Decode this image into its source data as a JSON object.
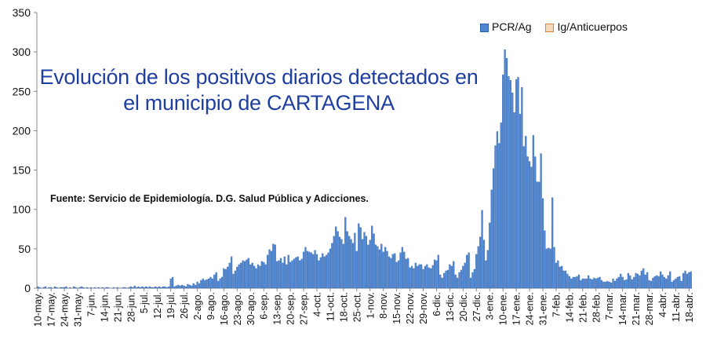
{
  "chart_data": {
    "type": "bar",
    "title": "Evolución de los positivos diarios detectados en el municipio de CARTAGENA",
    "title_lines": [
      "Evolución de los positivos diarios detectados en",
      "el municipio de CARTAGENA"
    ],
    "source": "Fuente: Servicio de Epidemiología. D.G. Salud Pública y Adicciones.",
    "ylim": [
      0,
      350
    ],
    "y_ticks": [
      "0",
      "50",
      "100",
      "150",
      "200",
      "250",
      "300",
      "350"
    ],
    "x_tick_labels": [
      "10-may.",
      "17-may.",
      "24-may.",
      "31-may.",
      "7-jun.",
      "14-jun.",
      "21-jun.",
      "28-jun.",
      "5-jul.",
      "12-jul.",
      "19-jul.",
      "26-jul.",
      "2-ago.",
      "9-ago.",
      "16-ago.",
      "23-ago.",
      "30-ago.",
      "6-sep.",
      "13-sep.",
      "20-sep.",
      "27-sep.",
      "4-oct.",
      "11-oct.",
      "18-oct.",
      "25-oct.",
      "1-nov.",
      "8-nov.",
      "15-nov.",
      "22-nov.",
      "29-nov.",
      "6-dic.",
      "13-dic.",
      "20-dic.",
      "27-dic.",
      "3-ene.",
      "10-ene.",
      "17-ene.",
      "24-ene.",
      "31-ene.",
      "7-feb.",
      "14-feb.",
      "21-feb.",
      "28-feb.",
      "7-mar.",
      "14-mar.",
      "21-mar.",
      "28-mar.",
      "4-abr.",
      "11-abr.",
      "18-abr."
    ],
    "x_start": "10-may.",
    "legend_position": "top-right",
    "grid": false,
    "colors": {
      "pcr": "#4f86cf",
      "pcr_edge": "#2b5fae",
      "ig": "#f7d8b8",
      "ig_edge": "#d9813c",
      "axis": "#888888"
    },
    "series": [
      {
        "name": "PCR/Ag",
        "weekly_daily_values": [
          [
            2,
            1,
            0,
            1,
            2,
            0,
            1
          ],
          [
            1,
            0,
            2,
            1,
            0,
            1,
            1
          ],
          [
            1,
            2,
            0,
            1,
            0,
            2,
            1
          ],
          [
            0,
            1,
            2,
            1,
            0,
            1,
            0
          ],
          [
            1,
            0,
            1,
            0,
            1,
            0,
            1
          ],
          [
            0,
            1,
            1,
            0,
            0,
            1,
            0
          ],
          [
            1,
            0,
            0,
            1,
            1,
            0,
            1
          ],
          [
            2,
            1,
            3,
            1,
            2,
            1,
            2
          ],
          [
            1,
            2,
            1,
            2,
            1,
            1,
            2
          ],
          [
            1,
            2,
            1,
            2,
            2,
            1,
            2
          ],
          [
            12,
            14,
            2,
            3,
            4,
            3,
            4
          ],
          [
            3,
            2,
            5,
            4,
            3,
            6,
            4
          ],
          [
            8,
            6,
            10,
            12,
            10,
            11,
            12
          ],
          [
            14,
            12,
            17,
            20,
            9,
            12,
            14
          ],
          [
            25,
            24,
            27,
            32,
            40,
            18,
            22
          ],
          [
            27,
            30,
            32,
            35,
            34,
            36,
            38
          ],
          [
            30,
            32,
            28,
            25,
            30,
            28,
            34
          ],
          [
            33,
            30,
            42,
            49,
            47,
            56,
            55
          ],
          [
            34,
            35,
            38,
            32,
            40,
            30,
            42
          ],
          [
            33,
            35,
            37,
            39,
            40,
            35,
            37
          ],
          [
            46,
            52,
            47,
            46,
            45,
            43,
            48
          ],
          [
            43,
            35,
            39,
            44,
            40,
            42,
            45
          ],
          [
            50,
            57,
            66,
            78,
            72,
            65,
            62
          ],
          [
            56,
            90,
            72,
            66,
            62,
            57,
            70
          ],
          [
            47,
            82,
            77,
            62,
            71,
            66,
            55
          ],
          [
            61,
            79,
            69,
            55,
            53,
            49,
            56
          ],
          [
            46,
            52,
            47,
            40,
            38,
            43,
            44
          ],
          [
            33,
            35,
            45,
            52,
            46,
            37,
            38
          ],
          [
            26,
            28,
            25,
            32,
            28,
            30,
            30
          ],
          [
            24,
            28,
            30,
            26,
            25,
            29,
            36
          ],
          [
            35,
            42,
            17,
            13,
            19,
            22,
            23
          ],
          [
            30,
            28,
            34,
            17,
            13,
            20,
            23
          ],
          [
            28,
            32,
            42,
            45,
            13,
            20,
            24
          ],
          [
            43,
            53,
            65,
            99,
            61,
            35,
            48
          ],
          [
            83,
            125,
            152,
            181,
            199,
            184,
            210
          ],
          [
            271,
            303,
            292,
            269,
            264,
            248,
            223
          ],
          [
            265,
            268,
            221,
            255,
            180,
            193,
            167
          ],
          [
            161,
            154,
            194,
            167,
            135,
            135,
            171
          ],
          [
            114,
            73,
            50,
            51,
            50,
            115,
            52
          ],
          [
            32,
            35,
            27,
            28,
            22,
            22,
            18
          ],
          [
            15,
            12,
            14,
            14,
            15,
            17,
            10
          ],
          [
            12,
            12,
            12,
            16,
            12,
            11,
            13
          ],
          [
            12,
            13,
            14,
            10,
            8,
            8,
            9
          ],
          [
            8,
            7,
            12,
            9,
            12,
            14,
            18
          ],
          [
            14,
            10,
            11,
            19,
            16,
            11,
            14
          ],
          [
            19,
            18,
            16,
            22,
            25,
            17,
            20
          ],
          [
            10,
            9,
            13,
            15,
            16,
            15,
            21
          ],
          [
            17,
            14,
            12,
            16,
            21,
            8,
            10
          ],
          [
            12,
            14,
            15,
            9,
            19,
            22,
            18
          ],
          [
            20,
            21
          ]
        ]
      },
      {
        "name": "Ig/Anticuerpos",
        "values": []
      }
    ]
  }
}
